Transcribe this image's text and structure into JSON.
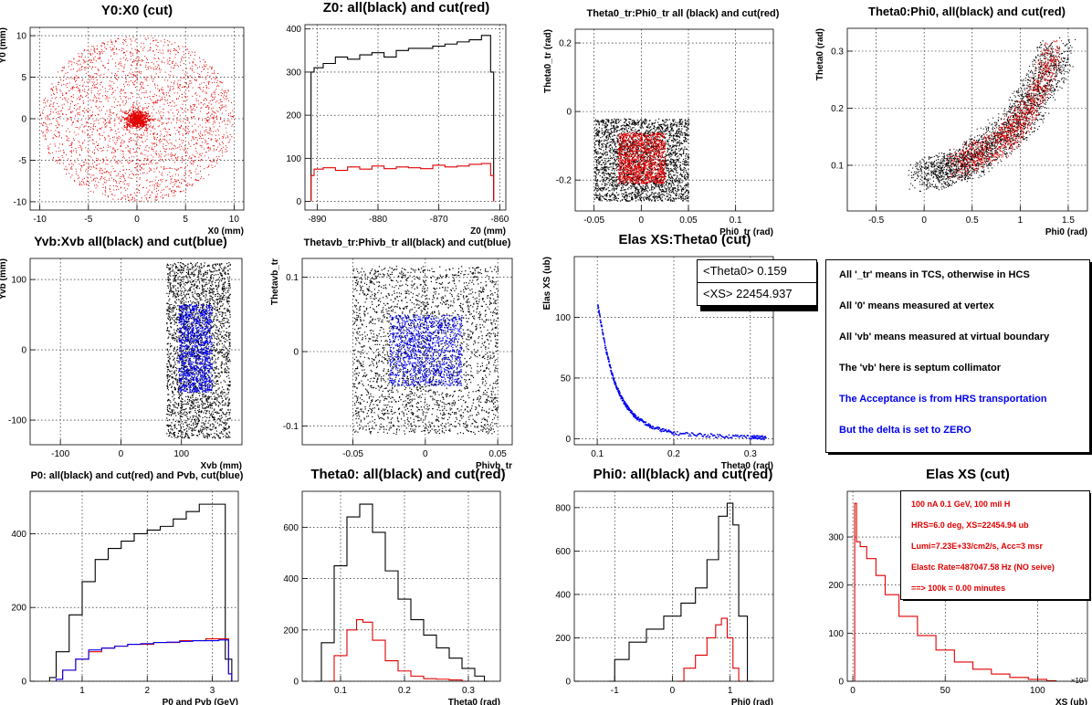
{
  "colors": {
    "black": "#000000",
    "red": "#e00000",
    "blue": "#0000ee"
  },
  "panels": [
    {
      "id": "p1",
      "title": "Y0:X0 (cut)",
      "xlabel": "X0 (mm)",
      "ylabel": "Y0 (mm)"
    },
    {
      "id": "p2",
      "title": "Z0: all(black) and cut(red)",
      "xlabel": "Z0 (mm)",
      "ylabel": ""
    },
    {
      "id": "p3",
      "title": "Theta0_tr:Phi0_tr all (black) and cut(red)",
      "xlabel": "Phi0_tr (rad)",
      "ylabel": "Theta0_tr (rad)"
    },
    {
      "id": "p4",
      "title": "Theta0:Phi0, all(black) and cut(red)",
      "xlabel": "Phi0 (rad)",
      "ylabel": "Theta0 (rad)"
    },
    {
      "id": "p5",
      "title": "Yvb:Xvb all(black) and cut(blue)",
      "xlabel": "Xvb (mm)",
      "ylabel": "Yvb (mm)"
    },
    {
      "id": "p6",
      "title": "Thetavb_tr:Phivb_tr all(black) and cut(blue)",
      "xlabel": "Phivb_tr",
      "ylabel": "Thetavb_tr"
    },
    {
      "id": "p7",
      "title": "Elas XS:Theta0 (cut)",
      "xlabel": "Theta0 (rad)",
      "ylabel": "Elas XS (ub)"
    },
    {
      "id": "p9",
      "title": "P0: all(black) and cut(red) and Pvb, cut(blue)",
      "xlabel": "P0 and Pvb (GeV)",
      "ylabel": ""
    },
    {
      "id": "p10",
      "title": "Theta0: all(black) and cut(red)",
      "xlabel": "Theta0 (rad)",
      "ylabel": ""
    },
    {
      "id": "p11",
      "title": "Phi0: all(black) and cut(red)",
      "xlabel": "Phi0 (rad)",
      "ylabel": ""
    },
    {
      "id": "p12",
      "title": "Elas XS (cut)",
      "xlabel": "XS (ub)",
      "ylabel": ""
    }
  ],
  "stats": {
    "theta_mean_label": "<Theta0>",
    "theta_mean": "0.159",
    "xs_mean_label": "<XS>",
    "xs_mean": "22454.937"
  },
  "notes": [
    {
      "text": "All '_tr' means in TCS, otherwise in HCS",
      "color": "#000000"
    },
    {
      "text": "All '0' means measured at vertex",
      "color": "#000000"
    },
    {
      "text": "All 'vb' means measured at virtual boundary",
      "color": "#000000"
    },
    {
      "text": "The 'vb' here is septum collimator",
      "color": "#000000"
    },
    {
      "text": "The Acceptance is from HRS transportation",
      "color": "#0000ee"
    },
    {
      "text": "But the delta is set to ZERO",
      "color": "#0000ee"
    }
  ],
  "xs_info": [
    "100 nA 0.1 GeV, 100 mil H",
    "HRS=6.0 deg, XS=22454.94 ub",
    "Lumi=7.23E+33/cm2/s, Acc=3 msr",
    "Elastc Rate=487047.58 Hz (NO seive)",
    "==> 100k = 0.00 minutes"
  ],
  "xs_exponent": "×10³",
  "chart_data": [
    {
      "id": "p1",
      "type": "scatter",
      "title": "Y0:X0 (cut)",
      "xlabel": "X0 (mm)",
      "ylabel": "Y0 (mm)",
      "xlim": [
        -11,
        11
      ],
      "ylim": [
        -11,
        11
      ],
      "xticks": [
        -10,
        -5,
        0,
        5,
        10
      ],
      "yticks": [
        -10,
        -5,
        0,
        5,
        10
      ],
      "grid": true,
      "series": [
        {
          "color": "red",
          "shape": "disk",
          "center": [
            0,
            0
          ],
          "radius": 10
        }
      ]
    },
    {
      "id": "p2",
      "type": "line",
      "title": "Z0: all(black) and cut(red)",
      "xlabel": "Z0 (mm)",
      "xlim": [
        -892,
        -859
      ],
      "ylim": [
        -20,
        410
      ],
      "xticks": [
        -890,
        -880,
        -870,
        -860
      ],
      "yticks": [
        0,
        100,
        200,
        300,
        400
      ],
      "grid": true,
      "series": [
        {
          "color": "black",
          "x": [
            -891,
            -890,
            -888,
            -886,
            -884,
            -882,
            -880,
            -878,
            -876,
            -874,
            -872,
            -870,
            -868,
            -866,
            -864,
            -862,
            -861
          ],
          "y": [
            300,
            310,
            320,
            335,
            330,
            340,
            345,
            335,
            350,
            355,
            355,
            360,
            365,
            370,
            375,
            385,
            300
          ]
        },
        {
          "color": "red",
          "x": [
            -891,
            -890,
            -888,
            -886,
            -884,
            -882,
            -880,
            -878,
            -876,
            -874,
            -872,
            -870,
            -868,
            -866,
            -864,
            -862,
            -861
          ],
          "y": [
            60,
            75,
            78,
            72,
            80,
            75,
            82,
            76,
            80,
            78,
            76,
            84,
            80,
            82,
            86,
            88,
            60
          ]
        }
      ]
    },
    {
      "id": "p3",
      "type": "scatter",
      "title": "Theta0_tr:Phi0_tr all (black) and cut(red)",
      "xlabel": "Phi0_tr (rad)",
      "ylabel": "Theta0_tr (rad)",
      "xlim": [
        -0.07,
        0.14
      ],
      "ylim": [
        -0.29,
        0.24
      ],
      "xticks": [
        -0.05,
        0,
        0.05,
        0.1
      ],
      "yticks": [
        -0.2,
        0,
        0.2
      ],
      "grid": true,
      "series": [
        {
          "color": "black",
          "xrange": [
            -0.05,
            0.05
          ],
          "yrange": [
            -0.26,
            -0.02
          ]
        },
        {
          "color": "red",
          "xrange": [
            -0.025,
            0.025
          ],
          "yrange": [
            -0.21,
            -0.06
          ]
        }
      ]
    },
    {
      "id": "p4",
      "type": "scatter",
      "title": "Theta0:Phi0, all(black) and cut(red)",
      "xlabel": "Phi0 (rad)",
      "ylabel": "Theta0 (rad)",
      "xlim": [
        -0.8,
        1.7
      ],
      "ylim": [
        0.02,
        0.34
      ],
      "xticks": [
        -0.5,
        0,
        0.5,
        1,
        1.5
      ],
      "yticks": [
        0.1,
        0.2,
        0.3
      ],
      "grid": true,
      "series": [
        {
          "color": "black",
          "band": [
            [
              0,
              0.08
            ],
            [
              0.5,
              0.11
            ],
            [
              1.0,
              0.18
            ],
            [
              1.4,
              0.3
            ]
          ]
        },
        {
          "color": "red",
          "band": [
            [
              0.3,
              0.1
            ],
            [
              0.8,
              0.14
            ],
            [
              1.1,
              0.2
            ],
            [
              1.35,
              0.3
            ]
          ]
        }
      ]
    },
    {
      "id": "p5",
      "type": "scatter",
      "title": "Yvb:Xvb all(black) and cut(blue)",
      "xlabel": "Xvb (mm)",
      "ylabel": "Yvb (mm)",
      "xlim": [
        -150,
        200
      ],
      "ylim": [
        -135,
        130
      ],
      "xticks": [
        -100,
        0,
        100
      ],
      "yticks": [
        -100,
        0,
        100
      ],
      "grid": true,
      "series": [
        {
          "color": "black",
          "xrange": [
            75,
            180
          ],
          "yrange": [
            -125,
            125
          ]
        },
        {
          "color": "blue",
          "xrange": [
            95,
            150
          ],
          "yrange": [
            -60,
            65
          ]
        }
      ]
    },
    {
      "id": "p6",
      "type": "scatter",
      "title": "Thetavb_tr:Phivb_tr all(black) and cut(blue)",
      "xlabel": "Phivb_tr",
      "ylabel": "Thetavb_tr",
      "xlim": [
        -0.085,
        0.06
      ],
      "ylim": [
        -0.125,
        0.125
      ],
      "xticks": [
        -0.05,
        0,
        0.05
      ],
      "yticks": [
        -0.1,
        0,
        0.1
      ],
      "grid": true,
      "series": [
        {
          "color": "black",
          "xrange": [
            -0.05,
            0.05
          ],
          "yrange": [
            -0.11,
            0.115
          ]
        },
        {
          "color": "blue",
          "xrange": [
            -0.025,
            0.025
          ],
          "yrange": [
            -0.045,
            0.05
          ]
        }
      ]
    },
    {
      "id": "p7",
      "type": "scatter",
      "title": "Elas XS:Theta0 (cut)",
      "xlabel": "Theta0 (rad)",
      "ylabel": "Elas XS (ub)",
      "xlim": [
        0.07,
        0.33
      ],
      "ylim": [
        -5,
        150
      ],
      "xticks": [
        0.1,
        0.2,
        0.3
      ],
      "yticks": [
        0,
        50,
        100
      ],
      "grid": true,
      "series": [
        {
          "color": "blue",
          "x": [
            0.1,
            0.11,
            0.12,
            0.13,
            0.14,
            0.15,
            0.17,
            0.2,
            0.25,
            0.3,
            0.32
          ],
          "y": [
            110,
            75,
            50,
            35,
            25,
            18,
            10,
            5,
            3,
            2,
            1
          ]
        }
      ]
    },
    {
      "id": "p9",
      "type": "line",
      "title": "P0: all(black) and cut(red) and Pvb, cut(blue)",
      "xlabel": "P0 and Pvb (GeV)",
      "xlim": [
        0.2,
        3.4
      ],
      "ylim": [
        0,
        515
      ],
      "xticks": [
        1,
        2,
        3
      ],
      "yticks": [
        0,
        200,
        400
      ],
      "grid": true,
      "series": [
        {
          "color": "black",
          "x": [
            0.5,
            0.7,
            0.9,
            1.1,
            1.3,
            1.5,
            1.7,
            1.9,
            2.1,
            2.3,
            2.5,
            2.7,
            2.9,
            3.1,
            3.3
          ],
          "y": [
            10,
            80,
            180,
            270,
            330,
            360,
            380,
            400,
            410,
            420,
            440,
            460,
            480,
            480,
            60
          ]
        },
        {
          "color": "red",
          "x": [
            0.6,
            0.8,
            1.0,
            1.2,
            1.4,
            1.6,
            1.8,
            2.0,
            2.2,
            2.4,
            2.6,
            2.8,
            3.0,
            3.2,
            3.3
          ],
          "y": [
            5,
            30,
            60,
            80,
            90,
            95,
            100,
            100,
            105,
            105,
            110,
            110,
            115,
            115,
            20
          ]
        },
        {
          "color": "blue",
          "x": [
            0.6,
            0.8,
            1.0,
            1.2,
            1.4,
            1.6,
            1.8,
            2.0,
            2.2,
            2.4,
            2.6,
            2.8,
            3.0,
            3.2,
            3.3
          ],
          "y": [
            5,
            30,
            60,
            85,
            90,
            95,
            100,
            102,
            105,
            106,
            108,
            110,
            110,
            112,
            20
          ]
        }
      ]
    },
    {
      "id": "p10",
      "type": "line",
      "title": "Theta0: all(black) and cut(red)",
      "xlabel": "Theta0 (rad)",
      "xlim": [
        0.04,
        0.35
      ],
      "ylim": [
        0,
        740
      ],
      "xticks": [
        0.1,
        0.2,
        0.3
      ],
      "yticks": [
        0,
        200,
        400,
        600
      ],
      "grid": true,
      "series": [
        {
          "color": "black",
          "x": [
            0.06,
            0.08,
            0.1,
            0.12,
            0.14,
            0.16,
            0.18,
            0.2,
            0.22,
            0.24,
            0.26,
            0.28,
            0.3,
            0.32,
            0.33
          ],
          "y": [
            0,
            150,
            450,
            640,
            690,
            580,
            430,
            320,
            240,
            180,
            130,
            90,
            50,
            20,
            0
          ]
        },
        {
          "color": "red",
          "x": [
            0.08,
            0.1,
            0.12,
            0.13,
            0.14,
            0.16,
            0.18,
            0.2,
            0.22,
            0.24,
            0.26,
            0.28,
            0.3
          ],
          "y": [
            0,
            100,
            200,
            240,
            230,
            160,
            80,
            40,
            20,
            10,
            8,
            5,
            0
          ]
        }
      ]
    },
    {
      "id": "p11",
      "type": "line",
      "title": "Phi0: all(black) and cut(red)",
      "xlabel": "Phi0 (rad)",
      "xlim": [
        -1.7,
        1.75
      ],
      "ylim": [
        0,
        875
      ],
      "xticks": [
        -1,
        0,
        1
      ],
      "yticks": [
        0,
        200,
        400,
        600,
        800
      ],
      "grid": true,
      "series": [
        {
          "color": "black",
          "x": [
            -1.1,
            -0.9,
            -0.6,
            -0.3,
            0,
            0.3,
            0.5,
            0.7,
            0.9,
            1.0,
            1.1,
            1.2,
            1.4
          ],
          "y": [
            0,
            100,
            180,
            240,
            300,
            360,
            430,
            560,
            760,
            820,
            720,
            300,
            0
          ]
        },
        {
          "color": "red",
          "x": [
            0.1,
            0.3,
            0.5,
            0.7,
            0.8,
            0.9,
            1.0,
            1.1,
            1.2
          ],
          "y": [
            0,
            60,
            120,
            200,
            260,
            290,
            200,
            60,
            0
          ]
        }
      ]
    },
    {
      "id": "p12",
      "type": "line",
      "title": "Elas XS (cut)",
      "xlabel": "XS (ub)",
      "xlim": [
        -3000,
        127000
      ],
      "ylim": [
        0,
        395
      ],
      "xticks": [
        0,
        50000,
        100000
      ],
      "yticks": [
        0,
        100,
        200,
        300
      ],
      "grid": true,
      "series": [
        {
          "color": "red",
          "x": [
            1000,
            3000,
            5000,
            10000,
            15000,
            20000,
            30000,
            40000,
            50000,
            60000,
            70000,
            80000,
            90000,
            100000,
            110000
          ],
          "y": [
            370,
            290,
            280,
            255,
            220,
            180,
            135,
            95,
            65,
            40,
            25,
            15,
            8,
            4,
            1
          ]
        }
      ]
    }
  ]
}
